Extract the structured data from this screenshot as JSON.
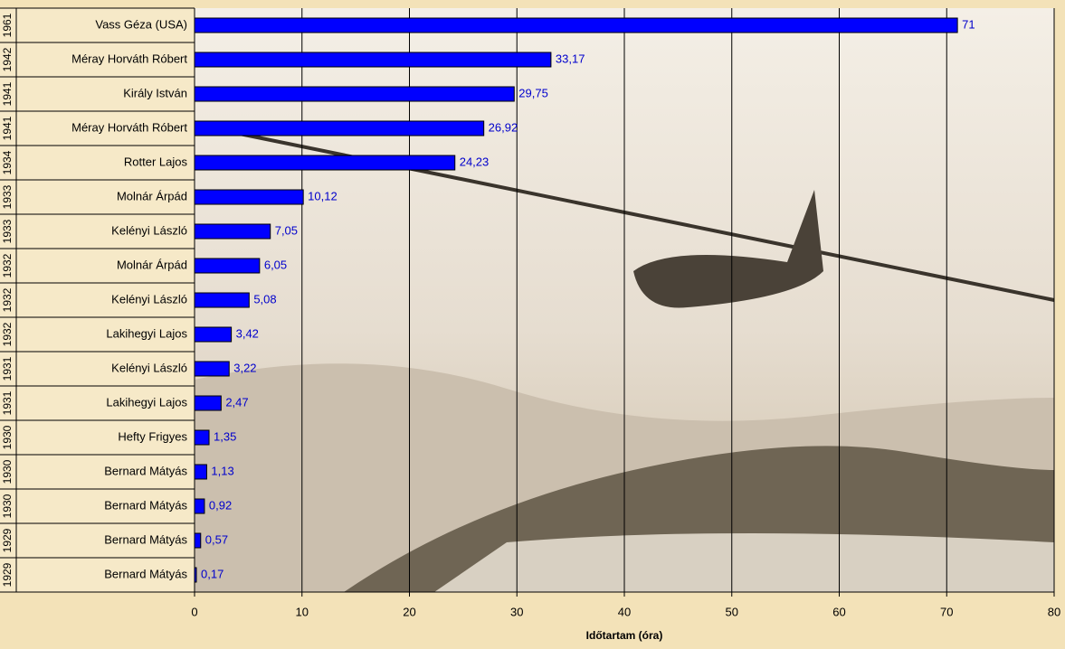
{
  "chart_data": {
    "type": "bar",
    "orientation": "horizontal",
    "groups": [
      "1961",
      "1942",
      "1941",
      "1941",
      "1934",
      "1933",
      "1933",
      "1932",
      "1932",
      "1932",
      "1931",
      "1931",
      "1930",
      "1930",
      "1930",
      "1929",
      "1929"
    ],
    "categories": [
      "Vass Géza (USA)",
      "Méray Horváth Róbert",
      "Király István",
      "Méray Horváth Róbert",
      "Rotter Lajos",
      "Molnár Árpád",
      "Kelényi László",
      "Molnár Árpád",
      "Kelényi László",
      "Lakihegyi Lajos",
      "Kelényi László",
      "Lakihegyi Lajos",
      "Hefty Frigyes",
      "Bernard Mátyás",
      "Bernard Mátyás",
      "Bernard Mátyás",
      "Bernard Mátyás"
    ],
    "values": [
      71,
      33.17,
      29.75,
      26.92,
      24.23,
      10.12,
      7.05,
      6.05,
      5.08,
      3.42,
      3.22,
      2.47,
      1.35,
      1.13,
      0.92,
      0.57,
      0.17
    ],
    "value_labels": [
      "71",
      "33,17",
      "29,75",
      "26,92",
      "24,23",
      "10,12",
      "7,05",
      "6,05",
      "5,08",
      "3,42",
      "3,22",
      "2,47",
      "1,35",
      "1,13",
      "0,92",
      "0,57",
      "0,17"
    ],
    "color": "#0000ff",
    "x_label": "Időtartam (óra)",
    "xlim": [
      0,
      80
    ],
    "xticks": [
      0,
      10,
      20,
      30,
      40,
      50,
      60,
      70,
      80
    ],
    "grid": true
  }
}
